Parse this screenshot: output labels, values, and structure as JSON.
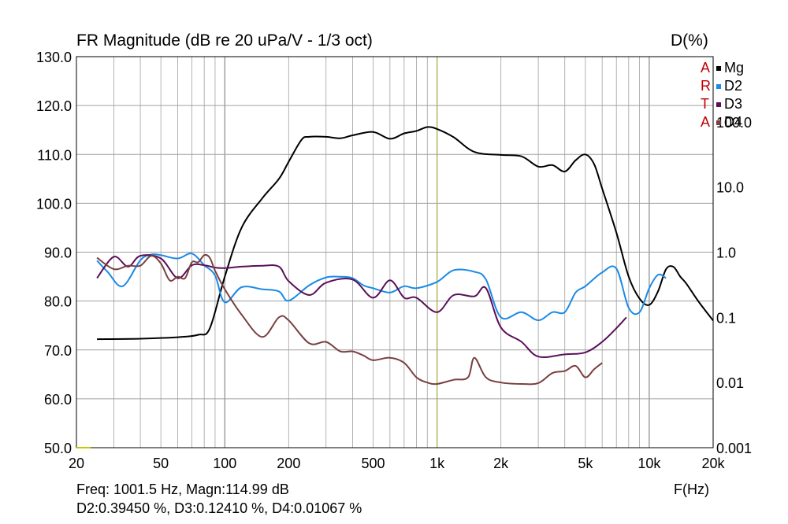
{
  "header": {
    "title": "FR Magnitude (dB re 20 uPa/V - 1/3 oct)",
    "right_title": "D(%)",
    "x_unit": "F(Hz)"
  },
  "brand": {
    "letters": [
      "A",
      "R",
      "T",
      "A"
    ]
  },
  "readout": {
    "line1": "Freq: 1001.5 Hz, Magn:114.99 dB",
    "line2": "D2:0.39450 %, D3:0.12410 %, D4:0.01067 %"
  },
  "colors": {
    "Mg": "#000000",
    "D2": "#1a8ae6",
    "D3": "#5a0f5a",
    "D4": "#7a3f3f",
    "cursor": "#b8b83a",
    "grid": "#a0a0a0",
    "brand": "#c00000"
  },
  "chart_data": {
    "type": "line",
    "title": "FR Magnitude (dB re 20 uPa/V - 1/3 oct)",
    "xlabel": "F(Hz)",
    "ylabel": "",
    "y2label": "D(%)",
    "xscale": "log",
    "xlim": [
      20,
      20000
    ],
    "ylim": [
      50,
      130
    ],
    "y2scale": "log",
    "y2lim": [
      0.001,
      1000
    ],
    "x_ticks": [
      20,
      50,
      100,
      200,
      500,
      1000,
      2000,
      5000,
      10000,
      20000
    ],
    "x_tick_labels": [
      "20",
      "50",
      "100",
      "200",
      "500",
      "1k",
      "2k",
      "5k",
      "10k",
      "20k"
    ],
    "y_ticks": [
      50,
      60,
      70,
      80,
      90,
      100,
      110,
      120,
      130
    ],
    "y_tick_labels": [
      "50.0",
      "60.0",
      "70.0",
      "80.0",
      "90.0",
      "100.0",
      "110.0",
      "120.0",
      "130.0"
    ],
    "y2_ticks": [
      0.001,
      0.01,
      0.1,
      1,
      10,
      100
    ],
    "y2_tick_labels": [
      "0.001",
      "0.01",
      "0.1",
      "1.0",
      "10.0",
      "100.0"
    ],
    "cursor_freq": 1001.5,
    "legend_position": "top-right",
    "grid": true,
    "series": [
      {
        "name": "Mg",
        "axis": "left",
        "color": "#000000",
        "x": [
          25,
          40,
          60,
          75,
          85,
          100,
          120,
          150,
          180,
          200,
          230,
          250,
          300,
          350,
          400,
          500,
          600,
          700,
          800,
          900,
          1000,
          1200,
          1500,
          2000,
          2500,
          3000,
          3500,
          4000,
          4500,
          5000,
          5500,
          6000,
          7000,
          8000,
          9000,
          10000,
          11000,
          12000,
          13000,
          14000,
          15000,
          17000,
          20000
        ],
        "y": [
          72.2,
          72.3,
          72.6,
          73.1,
          74.4,
          85.0,
          95.0,
          101.0,
          105.0,
          108.5,
          113.0,
          113.6,
          113.6,
          113.3,
          113.9,
          114.6,
          113.2,
          114.3,
          114.8,
          115.6,
          115.2,
          113.5,
          110.5,
          109.9,
          109.6,
          107.5,
          107.8,
          106.5,
          108.8,
          110.0,
          108.0,
          103.0,
          94.0,
          85.0,
          80.5,
          79.2,
          82.0,
          86.5,
          87.0,
          85.0,
          83.5,
          80.0,
          76.0
        ]
      },
      {
        "name": "D2",
        "axis": "right",
        "color": "#1a8ae6",
        "x": [
          25,
          28,
          33,
          40,
          45,
          50,
          60,
          70,
          80,
          90,
          100,
          120,
          150,
          180,
          200,
          250,
          300,
          350,
          400,
          450,
          500,
          600,
          700,
          800,
          1000,
          1200,
          1500,
          1700,
          2000,
          2500,
          3000,
          3500,
          4000,
          4500,
          5000,
          6000,
          7000,
          8000,
          9000,
          10000,
          11000,
          12000
        ],
        "y": [
          0.74,
          0.5,
          0.3,
          0.75,
          0.92,
          0.9,
          0.8,
          0.95,
          0.63,
          0.44,
          0.17,
          0.29,
          0.27,
          0.25,
          0.18,
          0.31,
          0.41,
          0.42,
          0.4,
          0.31,
          0.28,
          0.24,
          0.3,
          0.28,
          0.35,
          0.53,
          0.5,
          0.38,
          0.1,
          0.12,
          0.09,
          0.12,
          0.12,
          0.24,
          0.3,
          0.49,
          0.56,
          0.14,
          0.12,
          0.28,
          0.45,
          0.4
        ]
      },
      {
        "name": "D3",
        "axis": "right",
        "color": "#5a0f5a",
        "x": [
          25,
          30,
          35,
          40,
          50,
          60,
          70,
          80,
          90,
          100,
          120,
          150,
          180,
          200,
          250,
          300,
          400,
          500,
          600,
          700,
          800,
          1000,
          1200,
          1500,
          1700,
          2000,
          2500,
          3000,
          4000,
          5000,
          6000,
          7000,
          7800
        ],
        "y": [
          0.4,
          0.85,
          0.6,
          0.88,
          0.8,
          0.4,
          0.63,
          0.63,
          0.58,
          0.57,
          0.6,
          0.62,
          0.6,
          0.36,
          0.22,
          0.34,
          0.38,
          0.2,
          0.37,
          0.2,
          0.2,
          0.12,
          0.22,
          0.21,
          0.28,
          0.07,
          0.042,
          0.025,
          0.027,
          0.029,
          0.042,
          0.068,
          0.1
        ]
      },
      {
        "name": "D4",
        "axis": "right",
        "color": "#7a3f3f",
        "x": [
          25,
          30,
          35,
          40,
          45,
          50,
          55,
          60,
          65,
          70,
          75,
          80,
          85,
          90,
          100,
          120,
          150,
          180,
          200,
          250,
          300,
          350,
          400,
          450,
          500,
          600,
          700,
          800,
          900,
          1000,
          1200,
          1400,
          1500,
          1700,
          2000,
          2500,
          3000,
          3500,
          4000,
          4500,
          5000,
          5500,
          6000
        ],
        "y": [
          0.82,
          0.55,
          0.62,
          0.62,
          0.88,
          0.67,
          0.37,
          0.42,
          0.4,
          0.7,
          0.7,
          0.9,
          0.82,
          0.52,
          0.27,
          0.11,
          0.05,
          0.1,
          0.09,
          0.04,
          0.042,
          0.03,
          0.03,
          0.026,
          0.022,
          0.024,
          0.02,
          0.012,
          0.01,
          0.0095,
          0.011,
          0.012,
          0.024,
          0.012,
          0.01,
          0.0095,
          0.0098,
          0.014,
          0.015,
          0.018,
          0.012,
          0.016,
          0.02
        ]
      }
    ]
  }
}
